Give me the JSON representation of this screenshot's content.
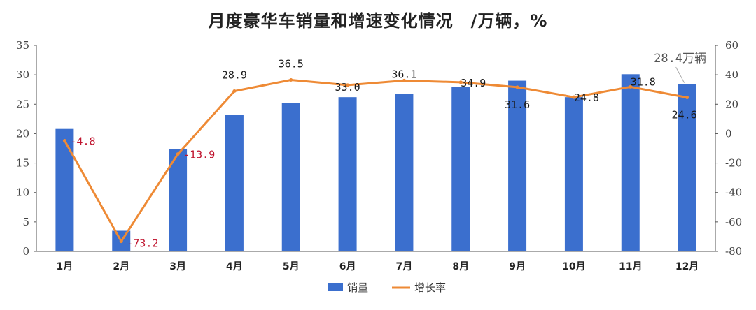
{
  "chart_data": {
    "type": "bar",
    "title": "月度豪华车销量和增速变化情况　/万辆，%",
    "categories": [
      "1月",
      "2月",
      "3月",
      "4月",
      "5月",
      "6月",
      "7月",
      "8月",
      "9月",
      "10月",
      "11月",
      "12月"
    ],
    "series": [
      {
        "name": "销量",
        "type": "bar",
        "axis": "left",
        "values": [
          20.8,
          3.5,
          17.4,
          23.2,
          25.2,
          26.2,
          26.8,
          28.0,
          29.0,
          26.2,
          30.1,
          28.4
        ]
      },
      {
        "name": "增长率",
        "type": "line",
        "axis": "right",
        "values": [
          -4.8,
          -73.2,
          -13.9,
          28.9,
          36.5,
          33.0,
          36.1,
          34.9,
          31.6,
          24.8,
          31.8,
          24.6
        ],
        "labels": [
          "-4.8",
          "-73.2",
          "-13.9",
          "28.9",
          "36.5",
          "33.0",
          "36.1",
          "34.9",
          "31.6",
          "24.8",
          "31.8",
          "24.6"
        ]
      }
    ],
    "y_left": {
      "min": 0,
      "max": 35,
      "ticks": [
        "0",
        "5",
        "10",
        "15",
        "20",
        "25",
        "30",
        "35"
      ]
    },
    "y_right": {
      "min": -80,
      "max": 60,
      "ticks": [
        "-80",
        "-60",
        "-40",
        "-20",
        "0",
        "20",
        "40",
        "60"
      ]
    },
    "annotation": "28.4万辆",
    "legend": {
      "position": "bottom",
      "items": [
        "销量",
        "增长率"
      ]
    },
    "colors": {
      "bar": "#3b6fce",
      "line": "#ee8a35",
      "negative_label": "#c0142e",
      "positive_label": "#1a1a1a"
    },
    "grid": false
  }
}
